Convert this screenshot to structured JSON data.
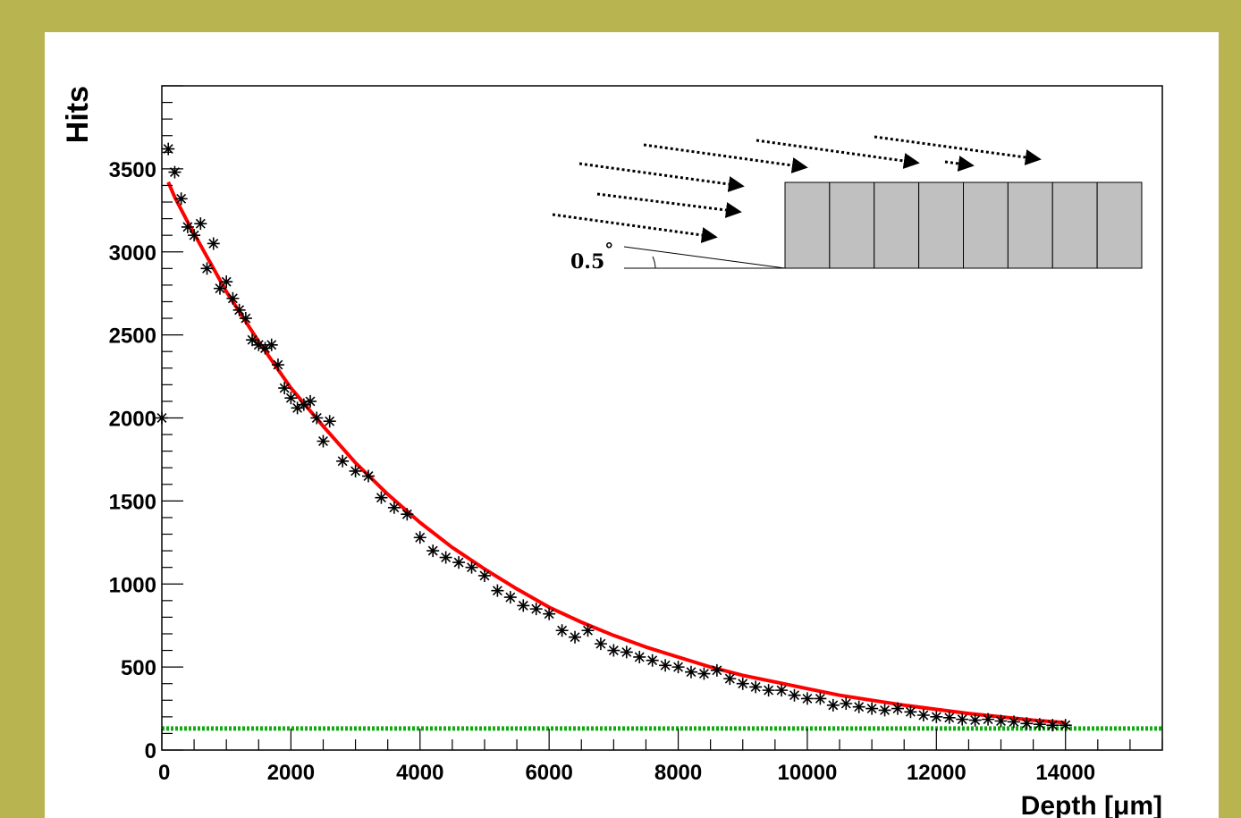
{
  "colors": {
    "background": "#b8b450",
    "panel": "#ffffff",
    "markers": "#000000",
    "fit": "#ff0000",
    "baseline": "#11aa11",
    "pixel_fill": "#c0c0c0"
  },
  "inset": {
    "angle_label": "0.5",
    "angle_unit": "°",
    "pixel_count": 8,
    "arrow_count": 7
  },
  "chart_data": {
    "type": "scatter",
    "xlabel": "Depth [μm]",
    "ylabel": "Hits",
    "xlim": [
      0,
      15500
    ],
    "ylim": [
      0,
      4000
    ],
    "grid": false,
    "x_ticks": [
      {
        "v": 0,
        "label": "0"
      },
      {
        "v": 2000,
        "label": "2000"
      },
      {
        "v": 4000,
        "label": "4000"
      },
      {
        "v": 6000,
        "label": "6000"
      },
      {
        "v": 8000,
        "label": "8000"
      },
      {
        "v": 10000,
        "label": "10000"
      },
      {
        "v": 12000,
        "label": "12000"
      },
      {
        "v": 14000,
        "label": "14000"
      }
    ],
    "y_ticks": [
      {
        "v": 0,
        "label": "0"
      },
      {
        "v": 500,
        "label": "500"
      },
      {
        "v": 1000,
        "label": "1000"
      },
      {
        "v": 1500,
        "label": "1500"
      },
      {
        "v": 2000,
        "label": "2000"
      },
      {
        "v": 2500,
        "label": "2500"
      },
      {
        "v": 3000,
        "label": "3000"
      },
      {
        "v": 3500,
        "label": "3500"
      }
    ],
    "series": [
      {
        "kind": "markers",
        "x": [
          0,
          100,
          200,
          300,
          400,
          500,
          600,
          700,
          800,
          900,
          1000,
          1100,
          1200,
          1300,
          1400,
          1500,
          1600,
          1700,
          1800,
          1900,
          2000,
          2100,
          2200,
          2300,
          2400,
          2500,
          2600,
          2800,
          3000,
          3200,
          3400,
          3600,
          3800,
          4000,
          4200,
          4400,
          4600,
          4800,
          5000,
          5200,
          5400,
          5600,
          5800,
          6000,
          6200,
          6400,
          6600,
          6800,
          7000,
          7200,
          7400,
          7600,
          7800,
          8000,
          8200,
          8400,
          8600,
          8800,
          9000,
          9200,
          9400,
          9600,
          9800,
          10000,
          10200,
          10400,
          10600,
          10800,
          11000,
          11200,
          11400,
          11600,
          11800,
          12000,
          12200,
          12400,
          12600,
          12800,
          13000,
          13200,
          13400,
          13600,
          13800,
          14000
        ],
        "y": [
          2000,
          3620,
          3480,
          3320,
          3150,
          3100,
          3170,
          2900,
          3050,
          2780,
          2820,
          2720,
          2650,
          2600,
          2470,
          2440,
          2420,
          2440,
          2320,
          2180,
          2120,
          2060,
          2080,
          2100,
          2000,
          1860,
          1980,
          1740,
          1680,
          1650,
          1520,
          1460,
          1420,
          1280,
          1200,
          1160,
          1130,
          1100,
          1050,
          960,
          920,
          870,
          850,
          820,
          720,
          680,
          720,
          640,
          600,
          590,
          560,
          540,
          510,
          500,
          470,
          460,
          480,
          430,
          400,
          380,
          360,
          360,
          330,
          310,
          310,
          270,
          280,
          260,
          250,
          240,
          250,
          230,
          210,
          200,
          195,
          185,
          180,
          185,
          175,
          170,
          160,
          155,
          150,
          150
        ]
      },
      {
        "kind": "fit",
        "x": [
          100,
          200,
          400,
          600,
          800,
          1000,
          1500,
          2000,
          2500,
          3000,
          3500,
          4000,
          4500,
          5000,
          5500,
          6000,
          6500,
          7000,
          7500,
          8000,
          8500,
          9000,
          9500,
          10000,
          10500,
          11000,
          11500,
          12000,
          12500,
          13000,
          13500,
          14000
        ],
        "y": [
          3420,
          3330,
          3180,
          3040,
          2900,
          2760,
          2460,
          2180,
          1950,
          1730,
          1540,
          1370,
          1220,
          1090,
          970,
          860,
          770,
          690,
          620,
          560,
          500,
          450,
          410,
          370,
          330,
          300,
          270,
          245,
          220,
          200,
          180,
          165
        ]
      },
      {
        "kind": "baseline",
        "y": 130
      }
    ]
  }
}
